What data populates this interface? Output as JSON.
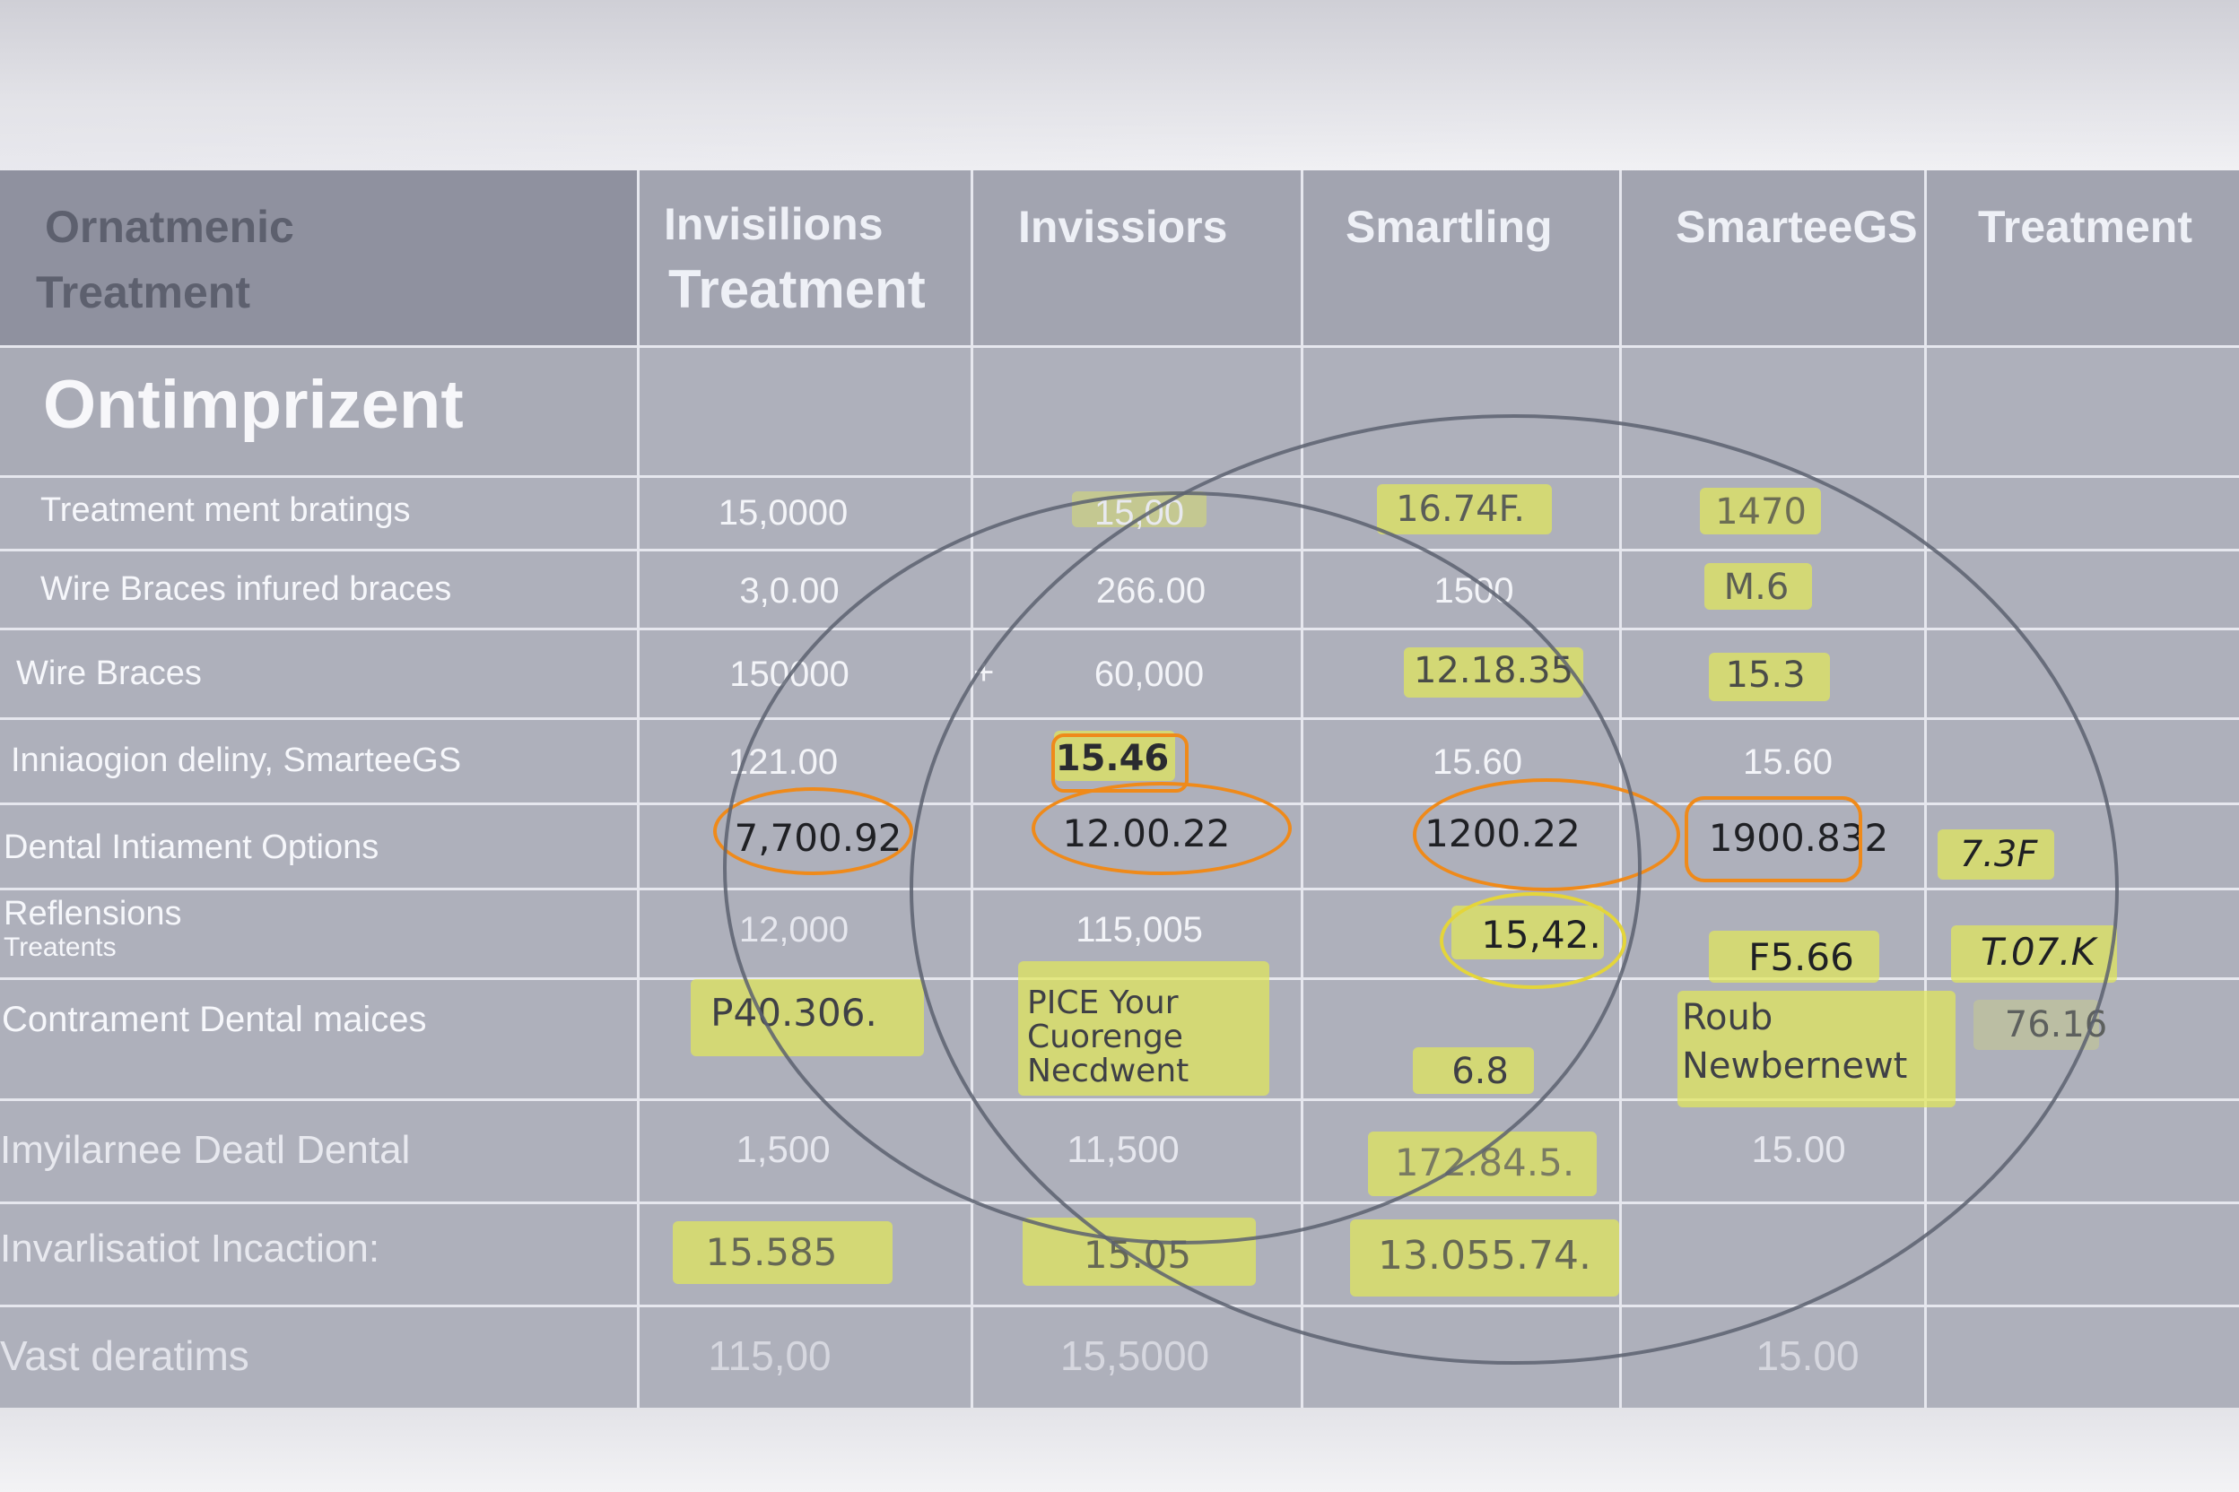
{
  "colors": {
    "header_bg": "#a2a4b0",
    "sheet_bg": "#aeb0bb",
    "highlighter": "#e2e85a",
    "circle_ink": "#ef8a1a",
    "ring_ink": "#5c6170"
  },
  "table": {
    "corner_header": [
      "Ornatmenic",
      "Treatment"
    ],
    "columns": [
      {
        "line1": "Invisilions",
        "line2": "Treatment"
      },
      {
        "line1": "Invissiors",
        "line2": ""
      },
      {
        "line1": "Smartling",
        "line2": ""
      },
      {
        "line1": "SmarteeGS",
        "line2": ""
      },
      {
        "line1": "Treatment",
        "line2": ""
      }
    ],
    "section_title": "Ontimprizent",
    "rows": [
      {
        "label": "Treatment ment bratings",
        "cells": [
          "15,0000",
          "15,00",
          "16.74F.",
          "1470",
          ""
        ]
      },
      {
        "label": "Wire Braces infured braces",
        "cells": [
          "3,0.00",
          "266.00",
          "1500",
          "M.6",
          ""
        ]
      },
      {
        "label": "Wire Braces",
        "cells": [
          "150000",
          "60,000",
          "12.18.35",
          "15.3",
          ""
        ]
      },
      {
        "label": "Inniaogion deliny, SmarteeGS",
        "cells": [
          "121.00",
          "15.46",
          "15.60",
          "15.60",
          ""
        ]
      },
      {
        "label": "Dental Intiament Options",
        "cells": [
          "7,700.92",
          "12.00.22",
          "1200.22",
          "1900.832",
          "7.3F"
        ]
      },
      {
        "label": "Reflensions",
        "sublabel": "Treatents",
        "cells": [
          "12,000",
          "115,005",
          "15,42.",
          "F5.66",
          "T.07.K"
        ]
      },
      {
        "label": "Contrament Dental maices",
        "cells": [
          "P40.306.",
          "PICE Your Cuorenge Necdwent",
          "6.8",
          "Roub Newbernewt",
          "76.16"
        ]
      },
      {
        "label": "Imyilarnee Deatl Dental",
        "cells": [
          "1,500",
          "11,500",
          "172.84.5.",
          "15.00",
          ""
        ]
      },
      {
        "label": "Invarlisatiot Incaction:",
        "cells": [
          "15.585",
          "15.05",
          "13.055.74.",
          "",
          ""
        ]
      },
      {
        "label": "Vast deratims",
        "cells": [
          "115,00",
          "15,5000",
          "",
          "15.00",
          ""
        ]
      }
    ],
    "plus_mark": "+"
  }
}
